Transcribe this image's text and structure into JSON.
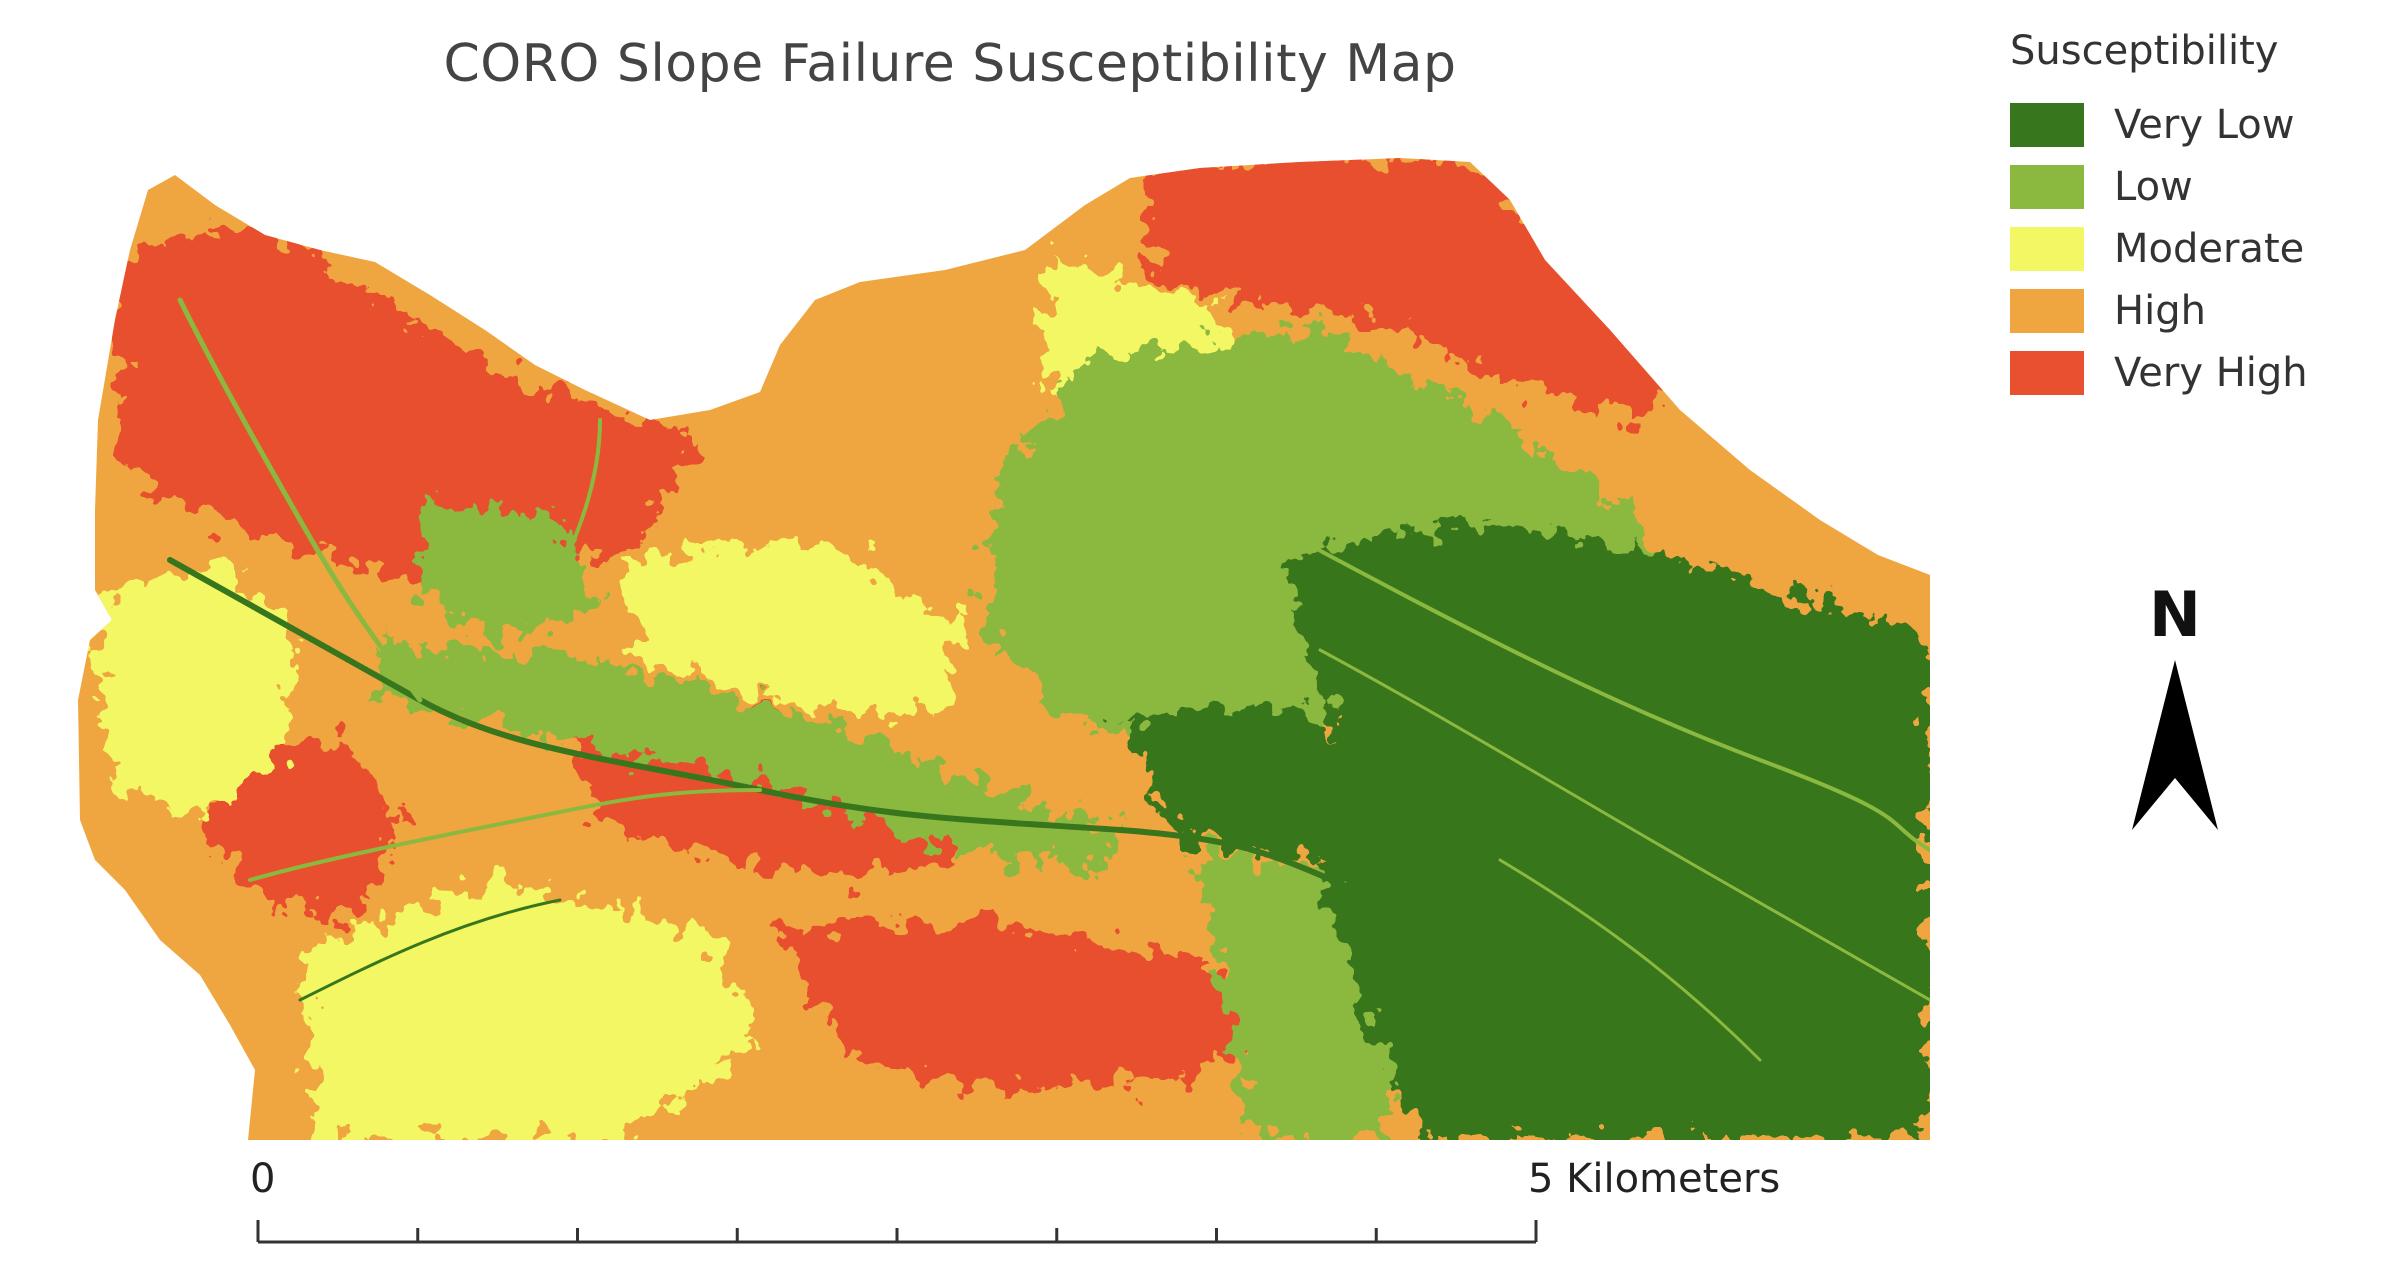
{
  "map": {
    "title": "CORO Slope Failure Susceptibility Map",
    "north_label": "N"
  },
  "legend": {
    "title": "Susceptibility",
    "items": [
      {
        "label": "Very Low",
        "color": "#38761d"
      },
      {
        "label": "Low",
        "color": "#8bb93f"
      },
      {
        "label": "Moderate",
        "color": "#f2f763"
      },
      {
        "label": "High",
        "color": "#f0a640"
      },
      {
        "label": "Very High",
        "color": "#e8502f"
      }
    ]
  },
  "scale": {
    "start_label": "0",
    "end_label": "5 Kilometers",
    "divisions": 8
  }
}
